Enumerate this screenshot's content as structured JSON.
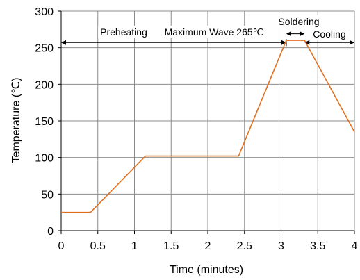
{
  "chart_data": {
    "type": "line",
    "title": "",
    "xlabel": "Time (minutes)",
    "ylabel": "Temperature (℃)",
    "xlim": [
      0,
      4
    ],
    "ylim": [
      0,
      300
    ],
    "xticks": [
      0,
      0.5,
      1,
      1.5,
      2,
      2.5,
      3,
      3.5,
      4
    ],
    "xtick_labels": [
      "0",
      "0.5",
      "1",
      "1.5",
      "2",
      "2.5",
      "3",
      "3.5",
      "4"
    ],
    "yticks": [
      0,
      50,
      100,
      150,
      200,
      250,
      300
    ],
    "ytick_labels": [
      "0",
      "50",
      "100",
      "150",
      "200",
      "250",
      "300"
    ],
    "grid": true,
    "line_color": "#E07020",
    "series": [
      {
        "x": [
          0,
          0.4,
          1.15,
          2.42,
          3.07,
          3.32,
          4.0
        ],
        "y": [
          25,
          25,
          102,
          102,
          260,
          260,
          135
        ]
      }
    ],
    "annotations": [
      {
        "text": "Preheating",
        "x_from": 0,
        "x_to": 3.07,
        "y": 257
      },
      {
        "text": "Maximum Wave 265℃",
        "x_from": 0,
        "x_to": 3.07,
        "y": 257
      },
      {
        "text": "Soldering",
        "x_from": 3.07,
        "x_to": 3.32,
        "y": 269
      },
      {
        "text": "Cooling",
        "x_from": 3.32,
        "x_to": 4.0,
        "y": 257
      }
    ]
  }
}
